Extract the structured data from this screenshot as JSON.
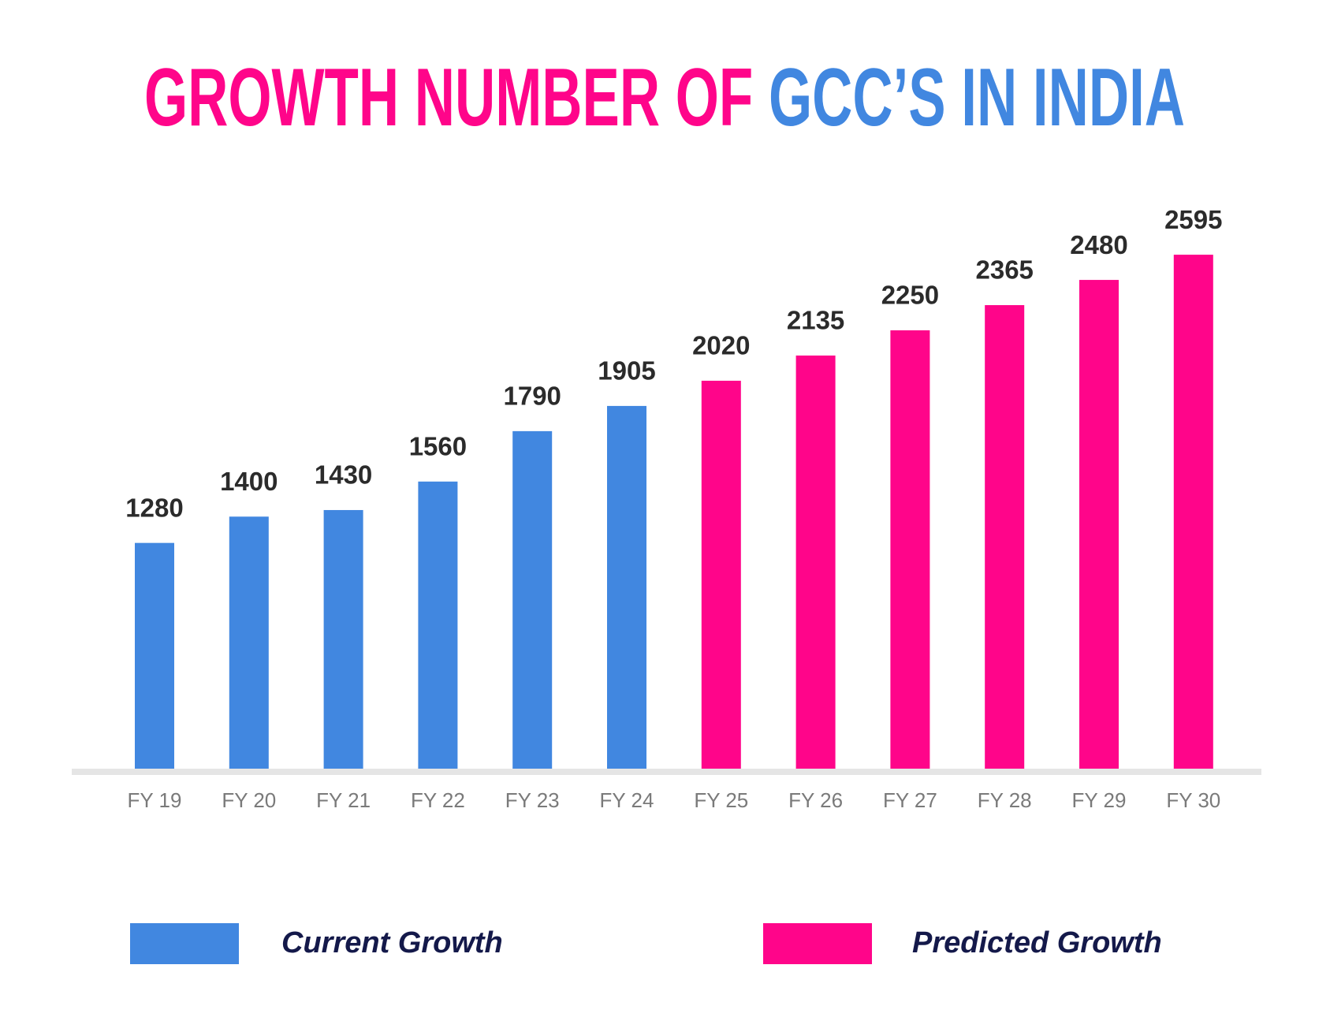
{
  "chart_data": {
    "type": "bar",
    "title": [
      "GROWTH NUMBER OF",
      "GCC’S IN INDIA"
    ],
    "categories": [
      "FY 19",
      "FY 20",
      "FY 21",
      "FY 22",
      "FY 23",
      "FY 24",
      "FY 25",
      "FY 26",
      "FY 27",
      "FY 28",
      "FY 29",
      "FY 30"
    ],
    "series": [
      {
        "name": "Current Growth",
        "color": "#4187e0",
        "values": [
          1280,
          1400,
          1430,
          1560,
          1790,
          1905,
          null,
          null,
          null,
          null,
          null,
          null
        ]
      },
      {
        "name": "Predicted Growth",
        "color": "#ff058a",
        "values": [
          null,
          null,
          null,
          null,
          null,
          null,
          2020,
          2135,
          2250,
          2365,
          2480,
          2595
        ]
      }
    ],
    "ylim": [
      250,
      2750
    ],
    "legend": "bottom"
  }
}
